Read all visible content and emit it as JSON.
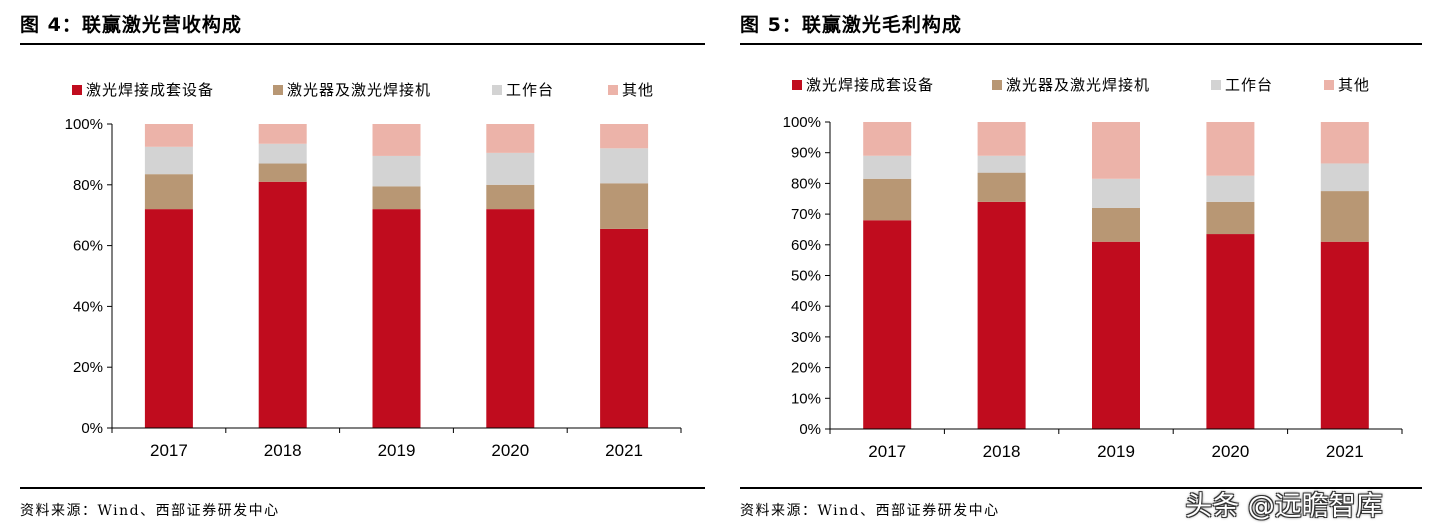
{
  "charts": [
    {
      "figure_title": "图 4：联赢激光营收构成",
      "source": "资料来源：Wind、西部证券研发中心"
    },
    {
      "figure_title": "图 5：联赢激光毛利构成",
      "source": "资料来源：Wind、西部证券研发中心"
    }
  ],
  "watermark": "头条 @远瞻智库",
  "chart_data": [
    {
      "type": "bar",
      "stacked": true,
      "title": "联赢激光营收构成",
      "categories": [
        "2017",
        "2018",
        "2019",
        "2020",
        "2021"
      ],
      "series": [
        {
          "name": "激光焊接成套设备",
          "color": "#C00C1E",
          "values": [
            72,
            81,
            72,
            72,
            65.5
          ]
        },
        {
          "name": "激光器及激光焊接机",
          "color": "#B89774",
          "values": [
            11.5,
            6,
            7.5,
            8,
            15
          ]
        },
        {
          "name": "工作台",
          "color": "#D3D3D3",
          "values": [
            9,
            6.5,
            10,
            10.5,
            11.5
          ]
        },
        {
          "name": "其他",
          "color": "#ECB3A9",
          "values": [
            7.5,
            6.5,
            10.5,
            9.5,
            8
          ]
        }
      ],
      "ylim": [
        0,
        100
      ],
      "yticks": [
        "0%",
        "20%",
        "40%",
        "60%",
        "80%",
        "100%"
      ],
      "ytick_values": [
        0,
        20,
        40,
        60,
        80,
        100
      ],
      "xlabel": "",
      "ylabel": "",
      "legend": "top"
    },
    {
      "type": "bar",
      "stacked": true,
      "title": "联赢激光毛利构成",
      "categories": [
        "2017",
        "2018",
        "2019",
        "2020",
        "2021"
      ],
      "series": [
        {
          "name": "激光焊接成套设备",
          "color": "#C00C1E",
          "values": [
            68,
            74,
            61,
            63.5,
            61
          ]
        },
        {
          "name": "激光器及激光焊接机",
          "color": "#B89774",
          "values": [
            13.5,
            9.5,
            11,
            10.5,
            16.5
          ]
        },
        {
          "name": "工作台",
          "color": "#D3D3D3",
          "values": [
            7.5,
            5.5,
            9.5,
            8.5,
            9
          ]
        },
        {
          "name": "其他",
          "color": "#ECB3A9",
          "values": [
            11,
            11,
            18.5,
            17.5,
            13.5
          ]
        }
      ],
      "ylim": [
        0,
        100
      ],
      "yticks": [
        "0%",
        "10%",
        "20%",
        "30%",
        "40%",
        "50%",
        "60%",
        "70%",
        "80%",
        "90%",
        "100%"
      ],
      "ytick_values": [
        0,
        10,
        20,
        30,
        40,
        50,
        60,
        70,
        80,
        90,
        100
      ],
      "xlabel": "",
      "ylabel": "",
      "legend": "top"
    }
  ]
}
